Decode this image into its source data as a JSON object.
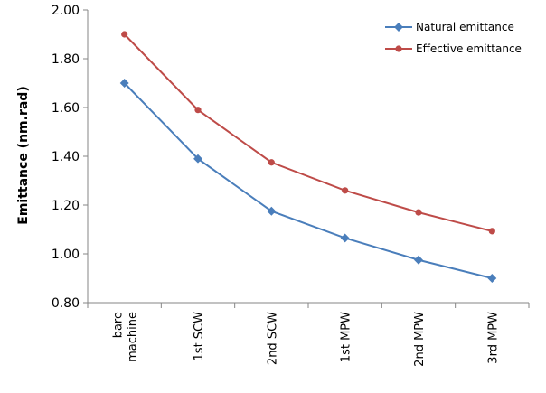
{
  "chart_data": {
    "type": "line",
    "categories": [
      "bare machine",
      "1st SCW",
      "2nd SCW",
      "1st MPW",
      "2nd MPW",
      "3rd MPW"
    ],
    "ylabel": "Emittance (nm.rad)",
    "xlabel": "",
    "ylim": [
      0.8,
      2.0
    ],
    "yticks": [
      "0.80",
      "1.00",
      "1.20",
      "1.40",
      "1.60",
      "1.80",
      "2.00"
    ],
    "grid": false,
    "legend_position": "top-right",
    "series": [
      {
        "name": "Natural emittance",
        "color": "#4a7ebb",
        "values": [
          1.7,
          1.39,
          1.175,
          1.065,
          0.975,
          0.9
        ]
      },
      {
        "name": "Effective emittance",
        "color": "#be4b48",
        "values": [
          1.9,
          1.59,
          1.375,
          1.26,
          1.17,
          1.093
        ]
      }
    ]
  }
}
